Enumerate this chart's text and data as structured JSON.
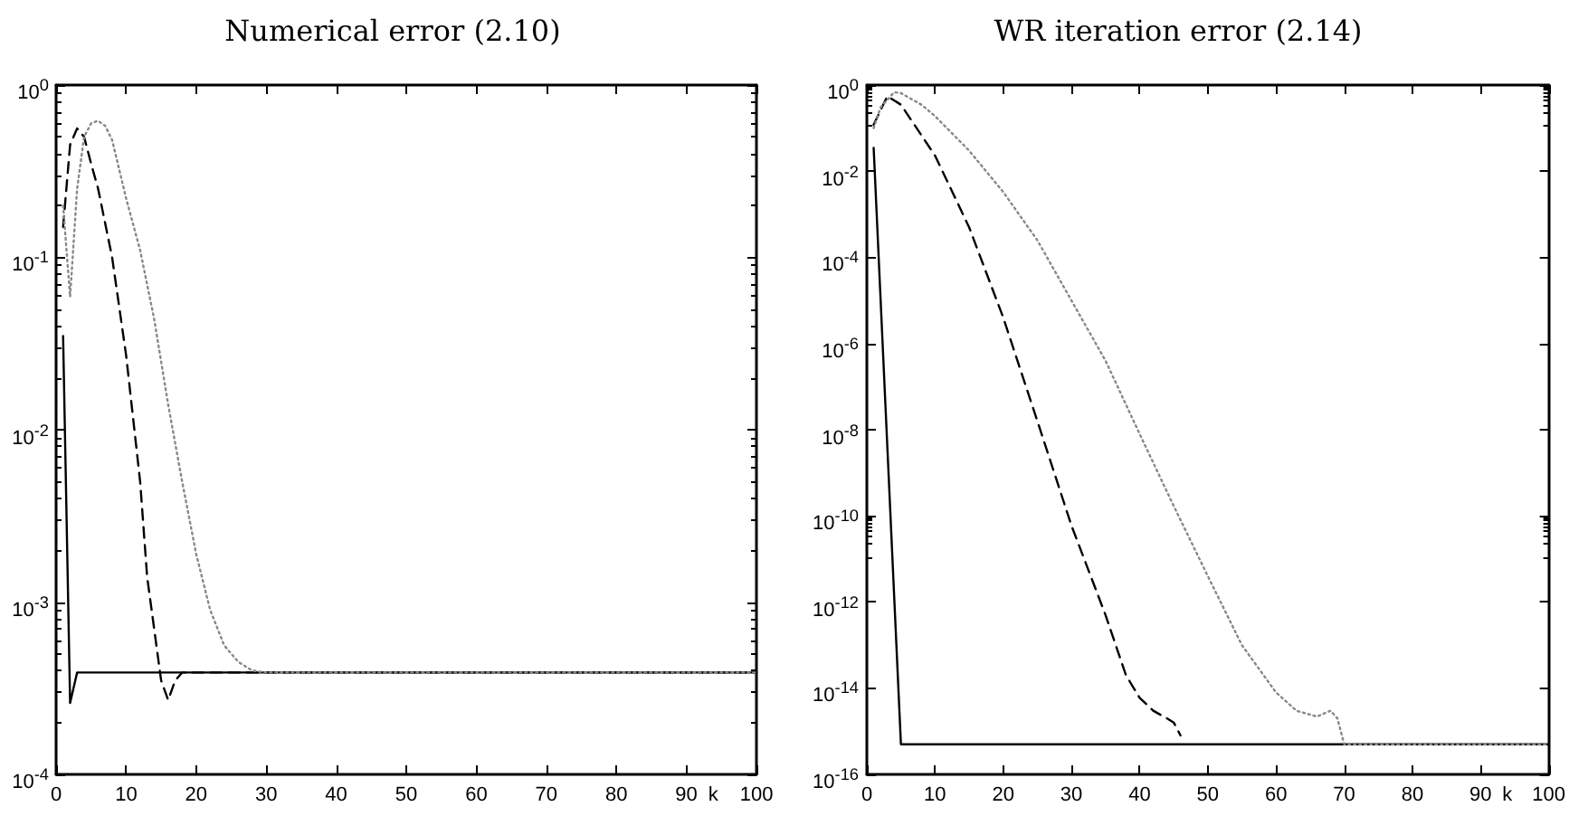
{
  "chart_data": [
    {
      "type": "line",
      "title": "Numerical error (2.10)",
      "xlabel": "k",
      "log": "y",
      "grid": false,
      "marker": "none",
      "xlim": [
        0,
        100
      ],
      "xticks": [
        0,
        10,
        20,
        30,
        40,
        50,
        60,
        70,
        80,
        90,
        100
      ],
      "ylim": [
        0.0001,
        1
      ],
      "yticks": [
        {
          "value": 0.0001,
          "label": "10$^{-4}$"
        },
        {
          "value": 0.001,
          "label": "10$^{-3}$"
        },
        {
          "value": 0.01,
          "label": "10$^{-2}$"
        },
        {
          "value": 0.1,
          "label": "10$^{-1}$"
        },
        {
          "value": 1,
          "label": "10$^{0}$"
        }
      ],
      "series": [
        {
          "color": "#000000",
          "line_style": "solid",
          "x": [
            1,
            2,
            3,
            100
          ],
          "values": [
            0.035,
            0.00026,
            0.00039,
            0.00039
          ]
        },
        {
          "color": "#000000",
          "line_style": "dashed",
          "x": [
            1,
            2,
            3,
            4,
            5,
            6,
            8,
            10,
            12,
            13,
            15,
            16,
            17,
            18,
            100
          ],
          "values": [
            0.15,
            0.45,
            0.56,
            0.5,
            0.35,
            0.25,
            0.1,
            0.027,
            0.005,
            0.0014,
            0.00035,
            0.00027,
            0.00035,
            0.00039,
            0.00039
          ]
        },
        {
          "color": "#888888",
          "line_style": "dotted",
          "x": [
            1,
            2,
            3,
            4,
            5,
            6,
            7,
            8,
            10,
            12,
            14,
            16,
            18,
            20,
            22,
            24,
            26,
            28,
            30,
            100
          ],
          "values": [
            0.2,
            0.059,
            0.25,
            0.5,
            0.6,
            0.62,
            0.58,
            0.48,
            0.22,
            0.11,
            0.044,
            0.014,
            0.005,
            0.0019,
            0.0009,
            0.00056,
            0.00045,
            0.0004,
            0.00039,
            0.00039
          ]
        }
      ]
    },
    {
      "type": "line",
      "title": "WR iteration error (2.14)",
      "xlabel": "k",
      "log": "y",
      "grid": false,
      "marker": "none",
      "xlim": [
        0,
        100
      ],
      "xticks": [
        0,
        10,
        20,
        30,
        40,
        50,
        60,
        70,
        80,
        90,
        100
      ],
      "ylim": [
        1e-16,
        1
      ],
      "yticks": [
        {
          "value": 1e-16,
          "label": "10$^{-16}$"
        },
        {
          "value": 1e-14,
          "label": "10$^{-14}$"
        },
        {
          "value": 1e-12,
          "label": "10$^{-12}$"
        },
        {
          "value": 1e-10,
          "label": "10$^{-10}$"
        },
        {
          "value": 1e-08,
          "label": "10$^{-8}$"
        },
        {
          "value": 1e-06,
          "label": "10$^{-6}$"
        },
        {
          "value": 0.0001,
          "label": "10$^{-4}$"
        },
        {
          "value": 0.01,
          "label": "10$^{-2}$"
        },
        {
          "value": 1,
          "label": "10$^{0}$"
        }
      ],
      "series": [
        {
          "color": "#000000",
          "line_style": "solid",
          "x": [
            1,
            5,
            100
          ],
          "values": [
            0.035,
            5e-16,
            5e-16
          ]
        },
        {
          "color": "#000000",
          "line_style": "dashed",
          "x": [
            1,
            3,
            5,
            10,
            15,
            20,
            25,
            30,
            35,
            38,
            40,
            42,
            44,
            45,
            46
          ],
          "values": [
            0.12,
            0.55,
            0.35,
            0.023,
            0.0005,
            4e-06,
            1.6e-08,
            6e-11,
            5e-13,
            2e-14,
            6e-15,
            3e-15,
            2e-15,
            1.6e-15,
            8e-16
          ]
        },
        {
          "color": "#888888",
          "line_style": "dotted",
          "x": [
            1,
            2,
            4,
            5,
            8,
            10,
            15,
            20,
            25,
            30,
            35,
            40,
            45,
            50,
            55,
            60,
            63,
            66,
            68,
            69,
            70,
            100
          ],
          "values": [
            0.1,
            0.3,
            0.68,
            0.65,
            0.35,
            0.19,
            0.03,
            0.0033,
            0.00025,
            1e-05,
            4e-07,
            8e-09,
            1.7e-10,
            4e-12,
            1e-13,
            8e-15,
            3e-15,
            2.2e-15,
            3e-15,
            2e-15,
            5e-16,
            5e-16
          ]
        }
      ]
    }
  ]
}
